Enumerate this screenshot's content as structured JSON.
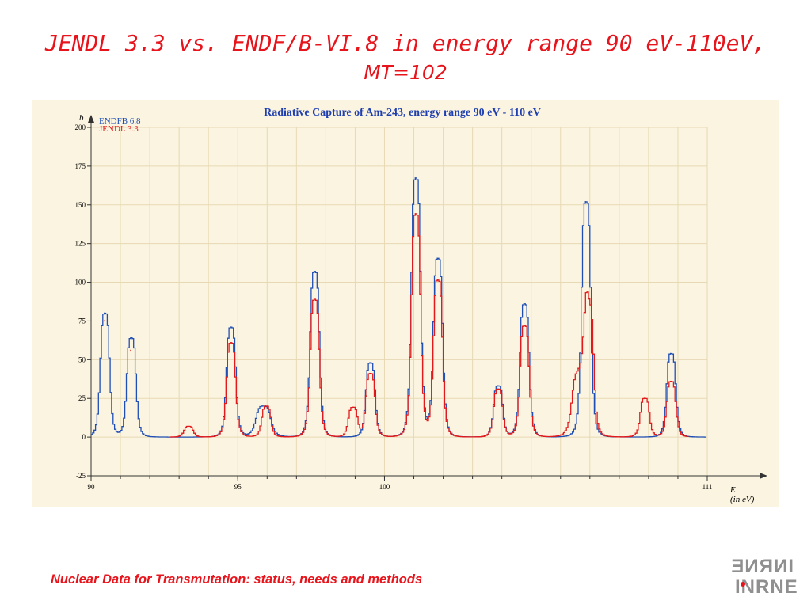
{
  "slide": {
    "title_line1": "JENDL 3.3 vs. ENDF/B-VI.8 in energy range 90 eV-110eV,",
    "title_line2": "MT=102",
    "footer": "Nuclear Data for Transmutation: status, needs and methods",
    "logo_top": "INRNE",
    "logo_bottom": "INRNE"
  },
  "colors": {
    "endf": "#1f4fb5",
    "jendl": "#e31a1c",
    "title": "#e8141c",
    "panel": "#fbf4e0",
    "grid": "#e7d9b4"
  },
  "chart_data": {
    "type": "line",
    "title": "Radiative Capture of Am-243, energy range 90 eV - 110 eV",
    "xlabel": "E",
    "xlabel_unit": "(in eV)",
    "ylabel": "b",
    "xlim": [
      90,
      111
    ],
    "ylim": [
      -25,
      200
    ],
    "x_ticks": [
      90,
      95,
      100,
      111
    ],
    "y_ticks": [
      -25,
      0,
      25,
      50,
      75,
      100,
      125,
      150,
      175,
      200
    ],
    "grid": true,
    "legend_position": "top-left",
    "series": [
      {
        "name": "ENDFB 6.8",
        "color": "#1f4fb5",
        "peaks": [
          {
            "x": 90.45,
            "y": 80,
            "w": 0.2
          },
          {
            "x": 91.35,
            "y": 64,
            "w": 0.2
          },
          {
            "x": 94.75,
            "y": 71,
            "w": 0.2
          },
          {
            "x": 95.85,
            "y": 20,
            "w": 0.32
          },
          {
            "x": 97.6,
            "y": 107,
            "w": 0.2
          },
          {
            "x": 99.5,
            "y": 48,
            "w": 0.2
          },
          {
            "x": 101.05,
            "y": 167,
            "w": 0.2
          },
          {
            "x": 101.8,
            "y": 115,
            "w": 0.2
          },
          {
            "x": 103.85,
            "y": 33,
            "w": 0.2
          },
          {
            "x": 104.75,
            "y": 86,
            "w": 0.2
          },
          {
            "x": 106.85,
            "y": 152,
            "w": 0.2
          },
          {
            "x": 109.75,
            "y": 54,
            "w": 0.2
          }
        ]
      },
      {
        "name": "JENDL 3.3",
        "color": "#e31a1c",
        "peaks": [
          {
            "x": 90.45,
            "y": 75,
            "w": 0.2
          },
          {
            "x": 91.35,
            "y": 56,
            "w": 0.2
          },
          {
            "x": 93.3,
            "y": 7,
            "w": 0.2
          },
          {
            "x": 94.75,
            "y": 61,
            "w": 0.2
          },
          {
            "x": 95.95,
            "y": 20,
            "w": 0.2
          },
          {
            "x": 97.6,
            "y": 89,
            "w": 0.2
          },
          {
            "x": 98.9,
            "y": 19,
            "w": 0.2
          },
          {
            "x": 99.5,
            "y": 41,
            "w": 0.2
          },
          {
            "x": 101.05,
            "y": 144,
            "w": 0.2
          },
          {
            "x": 101.8,
            "y": 101,
            "w": 0.2
          },
          {
            "x": 103.85,
            "y": 31,
            "w": 0.2
          },
          {
            "x": 104.75,
            "y": 72,
            "w": 0.2
          },
          {
            "x": 106.6,
            "y": 40,
            "w": 0.3
          },
          {
            "x": 106.95,
            "y": 80,
            "w": 0.2
          },
          {
            "x": 108.85,
            "y": 25,
            "w": 0.2
          },
          {
            "x": 109.75,
            "y": 36,
            "w": 0.2
          }
        ]
      }
    ]
  }
}
